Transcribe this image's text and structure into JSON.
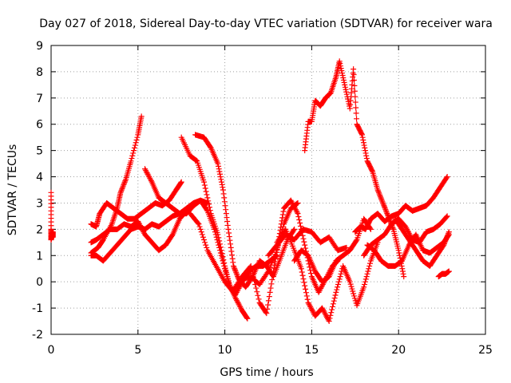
{
  "chart_data": {
    "type": "scatter",
    "title": "Day 027 of 2018, Sidereal Day-to-day VTEC variation (SDTVAR) for receiver wara",
    "xlabel": "GPS time / hours",
    "ylabel": "SDTVAR / TECUs",
    "xlim": [
      0,
      25
    ],
    "ylim": [
      -2,
      9
    ],
    "xticks": [
      0,
      5,
      10,
      15,
      20,
      25
    ],
    "yticks": [
      -2,
      -1,
      0,
      1,
      2,
      3,
      4,
      5,
      6,
      7,
      8,
      9
    ],
    "grid": true,
    "marker": "+",
    "color": "#ff0000",
    "series": [
      {
        "x": [
          0.0,
          0.0,
          0.0,
          0.1,
          0.1
        ],
        "y": [
          3.4,
          2.0,
          1.6,
          1.9,
          1.7
        ]
      },
      {
        "x": [
          2.3,
          2.7,
          3.0,
          3.5,
          3.8,
          4.0,
          4.3,
          4.6,
          5.0,
          5.2
        ],
        "y": [
          1.1,
          1.3,
          1.6,
          2.2,
          2.8,
          3.4,
          3.9,
          4.6,
          5.6,
          6.3
        ]
      },
      {
        "x": [
          2.3,
          2.6,
          3.0,
          3.4,
          3.8,
          4.2,
          4.6,
          5.0,
          5.4,
          5.8,
          6.2,
          6.6,
          7.0,
          7.4,
          7.8
        ],
        "y": [
          1.5,
          1.6,
          1.8,
          2.0,
          2.0,
          2.2,
          2.1,
          2.3,
          1.8,
          1.5,
          1.2,
          1.4,
          1.8,
          2.4,
          2.7
        ]
      },
      {
        "x": [
          2.3,
          2.6,
          2.8,
          3.2,
          3.6,
          4.0,
          4.4,
          4.8,
          5.2,
          5.6,
          6.0,
          6.4,
          6.8,
          7.2,
          7.5
        ],
        "y": [
          2.2,
          2.1,
          2.6,
          3.0,
          2.8,
          2.6,
          2.4,
          2.4,
          2.6,
          2.8,
          3.0,
          2.9,
          3.1,
          3.5,
          3.8
        ]
      },
      {
        "x": [
          2.3,
          2.6,
          3.0,
          3.4,
          3.8,
          4.2,
          4.6,
          5.0,
          5.4,
          5.8,
          6.2,
          6.6,
          7.0,
          7.4,
          7.8,
          8.2,
          8.6,
          9.0
        ],
        "y": [
          1.0,
          1.0,
          0.8,
          1.1,
          1.4,
          1.7,
          2.0,
          2.1,
          2.0,
          2.2,
          2.1,
          2.3,
          2.5,
          2.6,
          2.8,
          3.0,
          3.1,
          3.0
        ]
      },
      {
        "x": [
          5.4,
          5.8,
          6.2,
          6.6,
          7.0,
          7.4,
          7.8,
          8.2,
          8.6,
          9.0,
          9.4,
          9.8,
          10.2,
          10.6,
          11.0,
          11.3
        ],
        "y": [
          4.3,
          3.8,
          3.2,
          3.0,
          2.8,
          2.6,
          2.6,
          2.9,
          3.1,
          2.7,
          2.0,
          1.0,
          0.0,
          -0.6,
          -1.1,
          -1.4
        ]
      },
      {
        "x": [
          7.5,
          8.0,
          8.4,
          8.8,
          9.2,
          9.6,
          10.0,
          10.3,
          10.6,
          11.0,
          11.4,
          11.8,
          12.2,
          12.6,
          13.0
        ],
        "y": [
          5.5,
          4.8,
          4.6,
          3.8,
          2.6,
          1.8,
          0.6,
          -0.2,
          -0.5,
          0.0,
          0.4,
          0.6,
          0.6,
          0.8,
          1.0
        ]
      },
      {
        "x": [
          8.3,
          8.8,
          9.2,
          9.6,
          9.9,
          10.2,
          10.5,
          10.8,
          11.2,
          11.6,
          12.0,
          12.4,
          12.8,
          13.2,
          13.6,
          14.0
        ],
        "y": [
          5.6,
          5.5,
          5.1,
          4.5,
          3.5,
          2.0,
          0.6,
          0.1,
          -0.2,
          0.2,
          0.8,
          0.6,
          0.2,
          0.9,
          1.6,
          2.0
        ]
      },
      {
        "x": [
          8.0,
          8.5,
          9.0,
          9.5,
          10.0,
          10.5,
          11.0,
          11.5,
          12.0,
          12.5,
          13.0,
          13.4,
          13.8,
          14.2
        ],
        "y": [
          2.6,
          2.2,
          1.2,
          0.6,
          0.0,
          -0.4,
          0.1,
          0.2,
          -0.1,
          0.4,
          1.2,
          2.2,
          2.8,
          3.0
        ]
      },
      {
        "x": [
          10.5,
          11.0,
          11.5,
          12.0,
          12.4,
          12.8,
          13.1,
          13.4,
          13.8,
          14.2,
          14.6,
          15.0,
          15.4,
          15.8,
          16.2,
          16.5
        ],
        "y": [
          -0.3,
          0.2,
          0.6,
          -0.8,
          -1.2,
          0.4,
          1.6,
          2.8,
          3.1,
          2.6,
          1.4,
          0.2,
          -0.4,
          0.1,
          0.6,
          0.8
        ]
      },
      {
        "x": [
          12.5,
          13.0,
          13.5,
          14.0,
          14.5,
          15.0,
          15.5,
          16.0,
          16.5,
          17.0
        ],
        "y": [
          1.0,
          1.4,
          1.8,
          1.6,
          2.0,
          1.9,
          1.5,
          1.7,
          1.2,
          1.3
        ]
      },
      {
        "x": [
          13.0,
          13.5,
          14.0,
          14.4,
          14.8,
          15.2,
          15.6,
          16.0,
          16.4,
          16.8,
          17.2,
          17.6,
          18.0,
          18.4,
          18.8
        ],
        "y": [
          1.5,
          2.0,
          1.2,
          0.5,
          -0.8,
          -1.3,
          -1.0,
          -1.5,
          -0.4,
          0.6,
          0.0,
          -0.9,
          -0.2,
          0.8,
          1.5
        ]
      },
      {
        "x": [
          14.0,
          14.4,
          14.8,
          15.2,
          15.6,
          16.0,
          16.4,
          16.8,
          17.2,
          17.6,
          18.0,
          18.4
        ],
        "y": [
          0.8,
          1.2,
          1.0,
          0.4,
          0.0,
          0.2,
          0.8,
          1.0,
          1.2,
          1.6,
          2.4,
          2.0
        ]
      },
      {
        "x": [
          14.6,
          14.8,
          15.0,
          15.2,
          15.5,
          15.8,
          16.1,
          16.4,
          16.6,
          16.9,
          17.2,
          17.4,
          17.6,
          17.9,
          18.2,
          18.5,
          18.8,
          19.1,
          19.4,
          19.7,
          20.0,
          20.3
        ],
        "y": [
          5.0,
          6.1,
          6.1,
          6.9,
          6.7,
          7.0,
          7.2,
          7.8,
          8.4,
          7.5,
          6.6,
          8.1,
          6.0,
          5.6,
          4.6,
          4.2,
          3.5,
          3.0,
          2.5,
          2.0,
          1.2,
          0.2
        ]
      },
      {
        "x": [
          17.5,
          17.8,
          18.1,
          18.4,
          18.8,
          19.2,
          19.6,
          20.0,
          20.4,
          20.8,
          21.2,
          21.6,
          22.0,
          22.4,
          22.8
        ],
        "y": [
          1.9,
          2.1,
          2.0,
          2.4,
          2.6,
          2.3,
          2.5,
          2.6,
          2.9,
          2.7,
          2.8,
          2.9,
          3.2,
          3.6,
          4.0
        ]
      },
      {
        "x": [
          18.0,
          18.4,
          18.8,
          19.2,
          19.6,
          20.0,
          20.4,
          20.8,
          21.2,
          21.6,
          22.0,
          22.4,
          22.8
        ],
        "y": [
          1.0,
          1.4,
          1.6,
          1.8,
          2.2,
          2.4,
          2.1,
          1.6,
          1.5,
          1.9,
          2.0,
          2.2,
          2.5
        ]
      },
      {
        "x": [
          18.2,
          18.6,
          19.0,
          19.4,
          19.8,
          20.2,
          20.6,
          21.0,
          21.4,
          21.8,
          22.2,
          22.6,
          22.9
        ],
        "y": [
          1.4,
          1.2,
          0.8,
          0.6,
          0.6,
          0.8,
          1.4,
          1.8,
          1.2,
          1.1,
          1.3,
          1.5,
          1.8
        ]
      },
      {
        "x": [
          19.8,
          20.2,
          20.6,
          21.0,
          21.4,
          21.8,
          22.2,
          22.6,
          22.9
        ],
        "y": [
          2.4,
          2.0,
          1.6,
          1.2,
          0.8,
          0.6,
          1.0,
          1.4,
          1.9
        ]
      },
      {
        "x": [
          22.3,
          22.5,
          22.7,
          22.9
        ],
        "y": [
          0.2,
          0.3,
          0.3,
          0.4
        ]
      }
    ]
  }
}
